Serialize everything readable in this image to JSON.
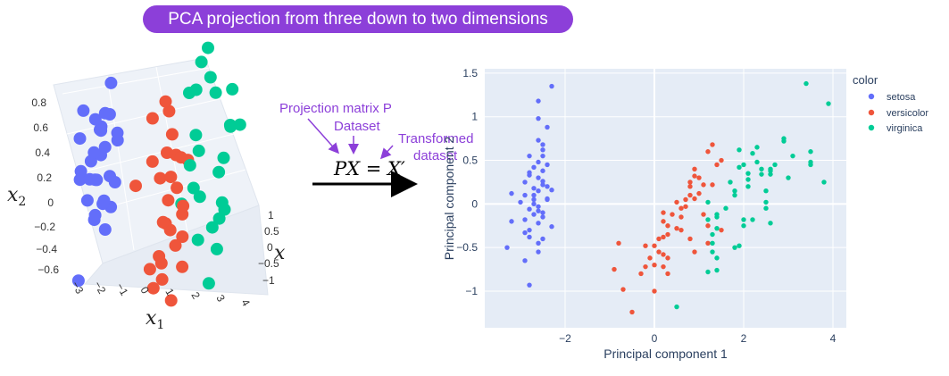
{
  "title": "PCA projection from three down to two dimensions",
  "colors": {
    "setosa": "#636efa",
    "versicolor": "#ef553b",
    "virginica": "#00cc96",
    "accent": "#8c3fd9",
    "plot_bg": "#e5ecf6"
  },
  "annotations": {
    "projection_matrix": "Projection matrix P",
    "dataset": "Dataset",
    "transformed_line1": "Transformed",
    "transformed_line2": "dataset",
    "equation": "PX = X′"
  },
  "plot3d": {
    "x1_label": "x1",
    "x2_label": "x2",
    "x3_label": "x3",
    "x1_ticks": [
      "−3",
      "−2",
      "−1",
      "0",
      "1",
      "2",
      "3",
      "4"
    ],
    "x2_ticks": [
      "0.8",
      "0.6",
      "0.4",
      "0.2",
      "0",
      "−0.2",
      "−0.4",
      "−0.6"
    ],
    "x3_ticks": [
      "1",
      "0.5",
      "0",
      "−0.5",
      "−1"
    ]
  },
  "legend": {
    "title": "color",
    "items": [
      "setosa",
      "versicolor",
      "virginica"
    ]
  },
  "chart_data": {
    "type": "scatter",
    "xlabel": "Principal component 1",
    "ylabel": "Principal component 2",
    "xlim": [
      -3.8,
      4.3
    ],
    "ylim": [
      -1.42,
      1.55
    ],
    "xticks": [
      -2,
      0,
      2,
      4
    ],
    "xtick_labels": [
      "−2",
      "0",
      "2",
      "4"
    ],
    "yticks": [
      1.5,
      1,
      0.5,
      0,
      -0.5,
      -1
    ],
    "ytick_labels": [
      "1.5",
      "1",
      "0.5",
      "0",
      "−0.5",
      "−1"
    ],
    "grid": true,
    "legend_position": "top-right",
    "series": [
      {
        "name": "setosa",
        "x": [
          -2.3,
          -2.6,
          -2.6,
          -3.2,
          -2.4,
          -2.6,
          -2.5,
          -2.8,
          -2.6,
          -2.7,
          -2.5,
          -2.8,
          -2.9,
          -2.7,
          -2.5,
          -2.4,
          -2.6,
          -2.4,
          -2.7,
          -3.0,
          -2.6,
          -2.8,
          -2.5,
          -2.7,
          -2.9,
          -2.6,
          -2.3,
          -2.9,
          -2.5,
          -2.4,
          -2.8,
          -2.5,
          -2.6,
          -2.9,
          -2.8,
          -3.3,
          -2.6,
          -2.7,
          -2.6,
          -2.5,
          -2.3,
          -2.4,
          -2.9,
          -2.7,
          -2.5,
          -2.6,
          -2.8,
          -3.2,
          -2.5,
          -2.8
        ],
        "y": [
          1.35,
          1.18,
          0.98,
          0.12,
          0.88,
          0.73,
          0.62,
          0.55,
          0.48,
          0.42,
          0.38,
          0.33,
          0.25,
          0.18,
          0.22,
          0.45,
          0.3,
          0.06,
          0.1,
          0.02,
          -0.03,
          -0.06,
          -0.1,
          -0.12,
          -0.18,
          -0.22,
          -0.26,
          -0.33,
          -0.4,
          0.2,
          -0.3,
          -0.15,
          -0.55,
          -0.65,
          -0.93,
          -0.5,
          0.15,
          0.05,
          -0.08,
          0.26,
          0.16,
          0.05,
          0.1,
          0.0,
          0.55,
          -0.45,
          -0.38,
          -0.2,
          0.68,
          0.36
        ]
      },
      {
        "name": "versicolor",
        "x": [
          1.3,
          0.9,
          1.5,
          0.2,
          1.1,
          0.6,
          1.2,
          -0.8,
          0.9,
          0.0,
          -0.5,
          0.5,
          0.3,
          0.8,
          -0.3,
          1.0,
          0.6,
          0.2,
          0.9,
          0.0,
          1.1,
          0.3,
          1.2,
          0.7,
          0.7,
          1.0,
          1.4,
          1.5,
          0.8,
          -0.2,
          -0.1,
          -0.2,
          0.0,
          1.3,
          0.5,
          0.8,
          1.2,
          0.9,
          0.2,
          0.1,
          0.4,
          0.8,
          0.1,
          -0.7,
          0.2,
          0.3,
          0.3,
          0.6,
          -0.9,
          0.2
        ],
        "y": [
          0.68,
          0.32,
          0.5,
          -0.38,
          -0.12,
          -0.3,
          0.6,
          -0.45,
          0.06,
          -0.7,
          -1.24,
          0.02,
          -0.35,
          0.25,
          -0.8,
          0.12,
          -0.15,
          -0.58,
          0.4,
          -0.48,
          0.22,
          -0.62,
          -0.25,
          0.05,
          -0.03,
          0.3,
          0.45,
          -0.3,
          0.1,
          -0.48,
          -0.62,
          -0.72,
          -1.0,
          0.22,
          -0.28,
          -0.4,
          -0.45,
          -0.55,
          -0.2,
          -0.4,
          -0.12,
          0.2,
          -0.55,
          -0.98,
          -0.1,
          -0.8,
          -0.25,
          -0.05,
          -0.75,
          -0.72
        ]
      },
      {
        "name": "virginica",
        "x": [
          2.5,
          1.4,
          2.6,
          2.0,
          2.4,
          3.4,
          0.5,
          2.9,
          2.3,
          3.8,
          1.9,
          1.8,
          2.2,
          1.3,
          1.6,
          2.0,
          1.9,
          3.5,
          3.9,
          1.2,
          2.7,
          1.2,
          3.5,
          1.4,
          2.6,
          2.9,
          1.3,
          1.3,
          2.1,
          2.6,
          3.1,
          3.5,
          2.1,
          1.4,
          1.8,
          3.0,
          2.1,
          1.9,
          1.2,
          2.4,
          2.5,
          2.2,
          1.4,
          2.6,
          2.5,
          2.3,
          1.7,
          1.8,
          2.0,
          1.4
        ],
        "y": [
          -0.05,
          -0.76,
          0.34,
          -0.18,
          0.4,
          1.38,
          -1.18,
          0.75,
          0.65,
          0.25,
          0.42,
          0.1,
          0.58,
          -0.55,
          -0.05,
          -0.25,
          0.62,
          0.48,
          1.15,
          -0.78,
          0.45,
          0.02,
          0.6,
          -0.12,
          -0.22,
          0.72,
          -0.35,
          -0.45,
          0.35,
          0.38,
          0.55,
          0.45,
          0.2,
          -0.15,
          0.15,
          0.3,
          0.28,
          -0.48,
          -0.18,
          0.34,
          0.02,
          -0.18,
          -0.62,
          0.4,
          0.15,
          0.48,
          0.25,
          -0.5,
          0.45,
          -0.28
        ]
      }
    ]
  },
  "scatter3d_data": {
    "setosa": [
      [
        -2.2,
        0.32,
        0.0
      ],
      [
        -2.9,
        0.12,
        0.2
      ],
      [
        -2.5,
        0.25,
        -0.3
      ],
      [
        -2.7,
        0.4,
        0.4
      ],
      [
        -2.0,
        0.38,
        -0.5
      ],
      [
        -1.9,
        0.56,
        0.2
      ],
      [
        -2.3,
        0.45,
        0.6
      ],
      [
        -3.0,
        0.22,
        -0.2
      ],
      [
        -1.8,
        0.2,
        0.0
      ],
      [
        -2.6,
        0.05,
        0.3
      ],
      [
        -2.1,
        0.1,
        -0.6
      ],
      [
        -2.4,
        0.5,
        -0.1
      ],
      [
        -1.7,
        0.5,
        0.5
      ],
      [
        -2.8,
        0.3,
        0.7
      ],
      [
        -2.2,
        -0.02,
        0.4
      ],
      [
        -1.6,
        0.65,
        -0.3
      ],
      [
        -2.5,
        0.18,
        0.8
      ],
      [
        -2.9,
        0.35,
        -0.5
      ],
      [
        -1.9,
        0.08,
        0.3
      ],
      [
        -2.0,
        0.3,
        0.9
      ],
      [
        -2.6,
        0.45,
        -0.8
      ],
      [
        -2.4,
        -0.05,
        -0.2
      ],
      [
        -1.5,
        0.4,
        0.1
      ],
      [
        -3.3,
        -0.3,
        0.2
      ],
      [
        -2.2,
        0.6,
        0.4
      ],
      [
        -2.8,
        0.1,
        -0.7
      ],
      [
        -1.8,
        0.35,
        -0.8
      ],
      [
        -2.3,
        0.15,
        0.5
      ],
      [
        -2.7,
        0.2,
        0.0
      ],
      [
        -2.1,
        0.42,
        -0.2
      ]
    ],
    "versicolor": [
      [
        0.5,
        0.35,
        -0.8
      ],
      [
        1.0,
        0.2,
        -0.5
      ],
      [
        1.3,
        0.05,
        -0.2
      ],
      [
        0.7,
        -0.1,
        0.0
      ],
      [
        1.5,
        0.15,
        -0.7
      ],
      [
        0.9,
        0.4,
        0.2
      ],
      [
        1.1,
        -0.2,
        -0.4
      ],
      [
        0.4,
        -0.35,
        0.3
      ],
      [
        1.4,
        -0.05,
        0.1
      ],
      [
        0.6,
        0.1,
        -0.3
      ],
      [
        1.2,
        0.3,
        0.4
      ],
      [
        0.8,
        -0.4,
        -0.6
      ],
      [
        0.3,
        0.0,
        0.6
      ],
      [
        1.6,
        0.25,
        0.2
      ],
      [
        0.9,
        -0.15,
        0.5
      ],
      [
        0.5,
        -0.3,
        -0.2
      ],
      [
        1.0,
        0.45,
        -0.3
      ],
      [
        1.3,
        -0.3,
        0.3
      ],
      [
        0.2,
        -0.45,
        -0.1
      ],
      [
        -0.1,
        -0.3,
        0.2
      ],
      [
        0.7,
        0.55,
        0.0
      ],
      [
        1.5,
        -0.2,
        -0.1
      ],
      [
        0.6,
        0.25,
        0.7
      ],
      [
        1.1,
        0.1,
        0.8
      ],
      [
        -0.4,
        0.05,
        -0.5
      ],
      [
        0.9,
        -0.5,
        0.1
      ],
      [
        1.2,
        -0.1,
        -0.8
      ],
      [
        0.4,
        0.15,
        -0.6
      ]
    ],
    "virginica": [
      [
        2.5,
        0.45,
        -0.9
      ],
      [
        3.0,
        0.55,
        -0.6
      ],
      [
        2.2,
        0.3,
        -0.3
      ],
      [
        3.3,
        0.2,
        0.0
      ],
      [
        2.8,
        0.6,
        0.3
      ],
      [
        2.0,
        0.05,
        -0.1
      ],
      [
        3.5,
        0.4,
        0.2
      ],
      [
        2.6,
        -0.1,
        0.4
      ],
      [
        1.9,
        0.35,
        0.6
      ],
      [
        2.4,
        0.7,
        -0.2
      ],
      [
        3.1,
        0.0,
        0.5
      ],
      [
        2.7,
        0.25,
        0.8
      ],
      [
        3.8,
        0.3,
        -0.4
      ],
      [
        2.1,
        -0.2,
        0.1
      ],
      [
        1.8,
        0.15,
        0.9
      ],
      [
        2.9,
        -0.25,
        0.2
      ],
      [
        3.4,
        0.65,
        0.6
      ],
      [
        2.3,
        -0.35,
        0.7
      ],
      [
        1.7,
        -0.1,
        -0.6
      ],
      [
        2.6,
        0.8,
        0.0
      ],
      [
        3.6,
        0.5,
        0.9
      ],
      [
        2.0,
        0.5,
        -0.5
      ],
      [
        3.2,
        -0.15,
        -0.2
      ],
      [
        1.6,
        0.25,
        0.4
      ],
      [
        2.8,
        0.1,
        0.9
      ]
    ]
  }
}
